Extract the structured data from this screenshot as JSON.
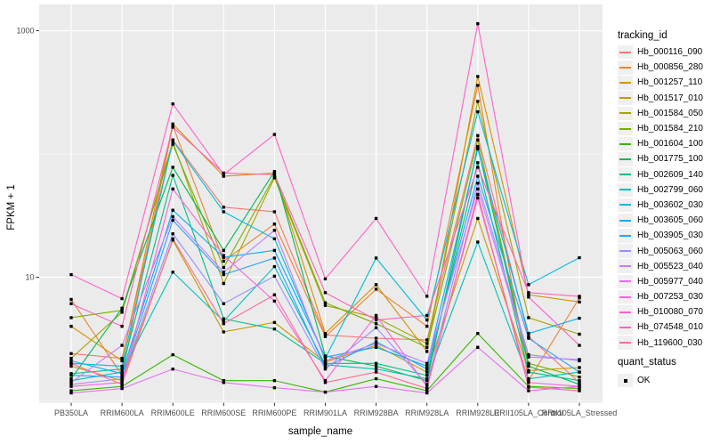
{
  "chart_data": {
    "type": "line",
    "title": "",
    "xlabel": "sample_name",
    "ylabel": "FPKM + 1",
    "y_scale": "log10",
    "y_ticks": [
      10,
      1000
    ],
    "y_minor_ticks": [
      1,
      100
    ],
    "ylim": [
      1,
      1500
    ],
    "grid": true,
    "legend_position": "right",
    "panel_bg": "#EBEBEB",
    "grid_color": "#FFFFFF",
    "tick_label_color": "#4D4D4D",
    "point_color": "#000000",
    "categories": [
      "PB350LA",
      "RRIM600LA",
      "RRIM600LE",
      "RRIM600SE",
      "RRIM600PE",
      "RRIM901LA",
      "RRIM928BA",
      "RRIM928LA",
      "RRIM928LE",
      "RRII105LA_Control",
      "RRII105LA_Stressed"
    ],
    "legend": {
      "line_title": "tracking_id",
      "point_title": "quant_status",
      "point_label": "OK"
    },
    "series": [
      {
        "name": "Hb_000116_090",
        "color": "#F8766D",
        "values": [
          2.4,
          2.2,
          130,
          37,
          34,
          3.4,
          3.2,
          3.1,
          141,
          3.3,
          1.4
        ]
      },
      {
        "name": "Hb_000856_280",
        "color": "#EA8331",
        "values": [
          6.6,
          1.6,
          170,
          13.5,
          27,
          3.3,
          8.0,
          4.0,
          360,
          1.45,
          6.8
        ]
      },
      {
        "name": "Hb_001257_110",
        "color": "#D89000",
        "values": [
          4.0,
          2.1,
          175,
          66,
          70,
          3.5,
          8.7,
          2.5,
          425,
          7.2,
          6.3
        ]
      },
      {
        "name": "Hb_001517_010",
        "color": "#C49A00",
        "values": [
          1.9,
          1.45,
          20,
          3.6,
          4.3,
          2.05,
          2.8,
          1.7,
          30,
          1.75,
          1.85
        ]
      },
      {
        "name": "Hb_001584_050",
        "color": "#A3A500",
        "values": [
          2.2,
          5.2,
          125,
          8.9,
          64,
          5.9,
          4.7,
          2.9,
          267,
          4.7,
          3.45
        ]
      },
      {
        "name": "Hb_001584_210",
        "color": "#7CAE00",
        "values": [
          4.7,
          5.4,
          120,
          12,
          66,
          6.2,
          4.2,
          2.7,
          130,
          2.0,
          1.55
        ]
      },
      {
        "name": "Hb_001604_100",
        "color": "#39B600",
        "values": [
          1.2,
          1.3,
          2.35,
          1.45,
          1.45,
          1.17,
          1.5,
          1.2,
          3.5,
          1.3,
          1.25
        ]
      },
      {
        "name": "Hb_001775_100",
        "color": "#00BB4E",
        "values": [
          1.5,
          5.6,
          78,
          16.5,
          72,
          2.3,
          1.9,
          1.45,
          115,
          1.9,
          1.35
        ]
      },
      {
        "name": "Hb_002609_140",
        "color": "#00C087",
        "values": [
          1.65,
          1.8,
          67,
          4.6,
          3.8,
          2.0,
          2.0,
          1.6,
          85,
          1.7,
          1.45
        ]
      },
      {
        "name": "Hb_002799_060",
        "color": "#00C0B8",
        "values": [
          1.45,
          1.7,
          11,
          4.4,
          12.2,
          1.95,
          1.8,
          1.5,
          19.3,
          1.5,
          1.7
        ]
      },
      {
        "name": "Hb_003602_030",
        "color": "#00BCD8",
        "values": [
          2.0,
          1.9,
          128,
          34,
          20.5,
          2.2,
          14.3,
          4.5,
          220,
          8.7,
          14.4
        ]
      },
      {
        "name": "Hb_003605_060",
        "color": "#00B0F6",
        "values": [
          2.1,
          1.65,
          35,
          14.5,
          16.5,
          2.25,
          2.7,
          1.9,
          110,
          3.5,
          4.65
        ]
      },
      {
        "name": "Hb_003905_030",
        "color": "#29A3FF",
        "values": [
          1.6,
          1.55,
          29,
          10.5,
          14.3,
          1.85,
          3.0,
          1.8,
          66,
          3.2,
          1.7
        ]
      },
      {
        "name": "Hb_005063_060",
        "color": "#9590FF",
        "values": [
          1.35,
          1.5,
          22.5,
          6.1,
          10.2,
          1.8,
          3.9,
          1.35,
          58,
          2.35,
          2.1
        ]
      },
      {
        "name": "Hb_005523_040",
        "color": "#C77CFF",
        "values": [
          1.4,
          2.8,
          31,
          11,
          24,
          2.1,
          2.9,
          2.0,
          52,
          2.25,
          2.15
        ]
      },
      {
        "name": "Hb_005977_040",
        "color": "#E76BF3",
        "values": [
          1.15,
          1.25,
          1.8,
          1.4,
          1.27,
          1.17,
          1.3,
          1.15,
          2.7,
          1.2,
          1.3
        ]
      },
      {
        "name": "Hb_007253_030",
        "color": "#FA62DB",
        "values": [
          1.3,
          1.4,
          52,
          15,
          6.4,
          1.45,
          4.9,
          1.3,
          44,
          1.4,
          1.3
        ]
      },
      {
        "name": "Hb_010080_070",
        "color": "#FF61C9",
        "values": [
          10.5,
          6.7,
          255,
          68,
          144,
          9.7,
          30,
          7.0,
          1140,
          6.9,
          2.8
        ]
      },
      {
        "name": "Hb_074548_010",
        "color": "#FF62BC",
        "values": [
          6.1,
          4.0,
          165,
          70,
          68,
          7.5,
          4.5,
          4.9,
          78,
          7.5,
          7.0
        ]
      },
      {
        "name": "Hb_119600_030",
        "color": "#FF6A98",
        "values": [
          2.0,
          1.35,
          20.5,
          4.2,
          7.2,
          1.4,
          1.7,
          1.25,
          47,
          1.28,
          1.2
        ]
      }
    ]
  }
}
